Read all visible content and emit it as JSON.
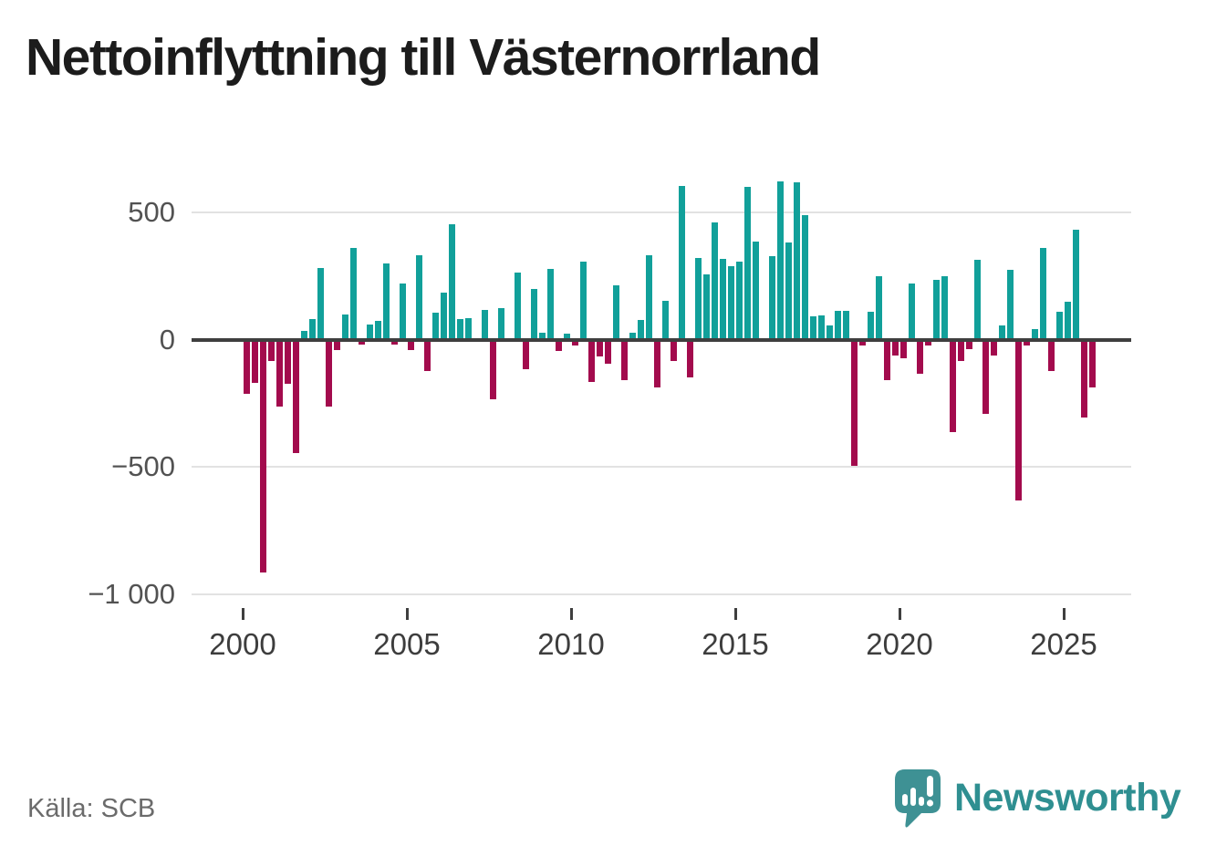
{
  "title": "Nettoinflyttning till Västernorrland",
  "source": "Källa: SCB",
  "branding": {
    "wordmark": "Newsworthy",
    "icon": "newsworthy-speech-bubble-bar-chart-icon"
  },
  "colors": {
    "positive": "#11a09a",
    "negative": "#a30b4d",
    "grid": "#e2e2e2",
    "axis_line": "#3f3f3f",
    "title_text": "#1c1c1c",
    "y_axis_text": "#525252",
    "x_axis_text": "#3d3d3d",
    "source_text": "#6b6b6b",
    "brand_teal": "#2f8f91",
    "brand_icon_teal": "#3e9194"
  },
  "chart_data": {
    "type": "bar",
    "title": "Nettoinflyttning till Västernorrland",
    "frequency": "quarterly",
    "x_start": "2000 Q1",
    "x_end": "2025 Q4",
    "start_year": 2000,
    "quarters_per_year": 4,
    "values": [
      -215,
      -170,
      -915,
      -85,
      -265,
      -175,
      -445,
      35,
      80,
      280,
      -265,
      -40,
      100,
      360,
      -20,
      60,
      75,
      300,
      -20,
      220,
      -40,
      330,
      -125,
      105,
      185,
      455,
      80,
      85,
      5,
      117,
      -234,
      122,
      5,
      265,
      -117,
      200,
      26,
      277,
      -45,
      24,
      -25,
      308,
      -167,
      -66,
      -95,
      212,
      -159,
      26,
      78,
      332,
      -189,
      153,
      -84,
      603,
      -147,
      320,
      255,
      459,
      318,
      287,
      308,
      602,
      386,
      2,
      329,
      623,
      380,
      620,
      490,
      90,
      95,
      54,
      112,
      114,
      -496,
      -22,
      108,
      249,
      -160,
      -62,
      -72,
      222,
      -134,
      -24,
      233,
      249,
      -365,
      -86,
      -36,
      315,
      -293,
      -62,
      56,
      275,
      -632,
      -22,
      42,
      361,
      -123,
      110,
      147,
      431,
      -305,
      -188
    ],
    "ylim": [
      -1000,
      700
    ],
    "yticks": {
      "values": [
        500,
        0,
        -500,
        -1000
      ],
      "labels": [
        "500",
        "0",
        "−500",
        "−1 000"
      ]
    },
    "xticks": {
      "years": [
        2000,
        2005,
        2010,
        2015,
        2020,
        2025
      ],
      "labels": [
        "2000",
        "2005",
        "2010",
        "2015",
        "2020",
        "2025"
      ]
    },
    "grid": true,
    "legend": false,
    "positive_color": "#11a09a",
    "negative_color": "#a30b4d"
  }
}
